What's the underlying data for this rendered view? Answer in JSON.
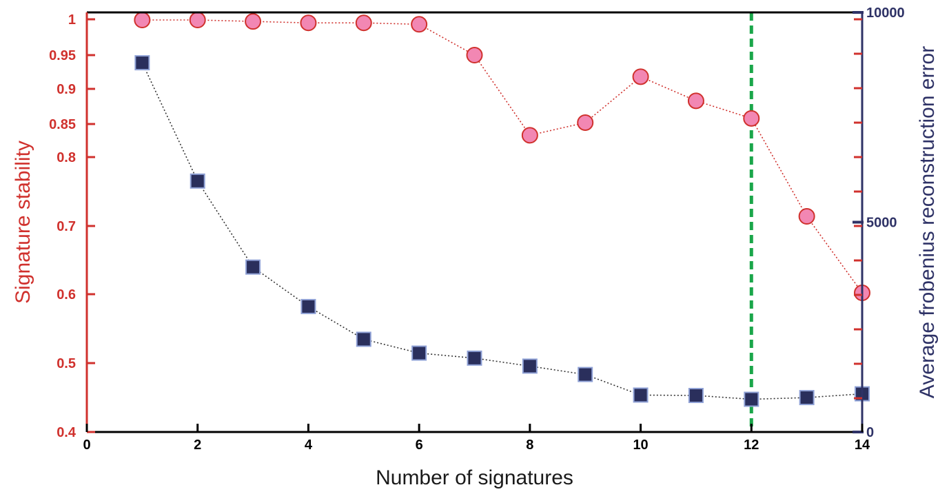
{
  "chart_data": {
    "type": "line",
    "x": [
      1,
      2,
      3,
      4,
      5,
      6,
      7,
      8,
      9,
      10,
      11,
      12,
      13,
      14
    ],
    "xlabel": "Number of signatures",
    "xlim": [
      0,
      14
    ],
    "xticks": [
      "0",
      "2",
      "4",
      "6",
      "8",
      "10",
      "12",
      "14"
    ],
    "y_left": {
      "label": "Signature stability",
      "lim": [
        0.4,
        1.0
      ],
      "scale": "stability (ticks unevenly spaced)",
      "ticks": [
        "0.4",
        "0.5",
        "0.6",
        "0.7",
        "0.8",
        "0.85",
        "0.9",
        "0.95",
        "1"
      ],
      "color": "#d0312d"
    },
    "y_right": {
      "label": "Average frobenius reconstruction error",
      "lim": [
        0,
        10000
      ],
      "ticks": [
        "0",
        "5000",
        "10000"
      ],
      "color": "#2e3266"
    },
    "series": [
      {
        "axis": "left",
        "marker": "circle",
        "color": "#f287b3",
        "edge_color": "#d0312d",
        "line_style": "dotted",
        "values": [
          0.999,
          0.999,
          0.997,
          0.995,
          0.995,
          0.993,
          0.95,
          0.833,
          0.852,
          0.918,
          0.883,
          0.858,
          0.714,
          0.602
        ]
      },
      {
        "axis": "right",
        "marker": "square",
        "color": "#2a2f5c",
        "edge_color": "#8fa1d6",
        "line_style": "dotted",
        "values": [
          8800,
          5980,
          3930,
          2990,
          2210,
          1880,
          1760,
          1570,
          1370,
          880,
          870,
          780,
          820,
          910
        ]
      }
    ],
    "reference_line": {
      "x": 12,
      "color": "#1aa64a",
      "style": "dashed"
    },
    "grid": false,
    "legend": "none"
  }
}
